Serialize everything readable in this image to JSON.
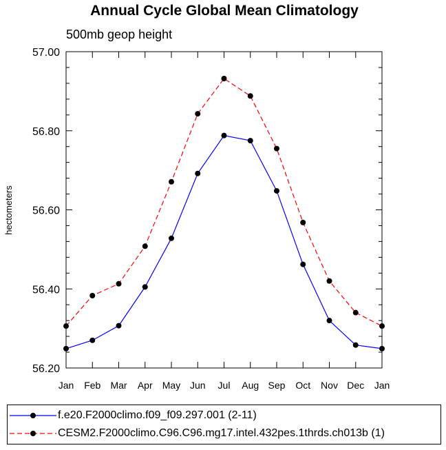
{
  "chart_data": {
    "type": "line",
    "title": "Annual Cycle Global Mean Climatology",
    "subtitle": "500mb geop height",
    "ylabel": "hectometers",
    "xlabel": "",
    "ylim": [
      56.2,
      57.0
    ],
    "ytick_values": [
      56.2,
      56.4,
      56.6,
      56.8,
      57.0
    ],
    "ytick_labels": [
      "56.20",
      "56.40",
      "56.60",
      "56.80",
      "57.00"
    ],
    "categories": [
      "Jan",
      "Feb",
      "Mar",
      "Apr",
      "May",
      "Jun",
      "Jul",
      "Aug",
      "Sep",
      "Oct",
      "Nov",
      "Dec",
      "Jan"
    ],
    "grid": false,
    "series": [
      {
        "name": "f.e20.F2000climo.f09_f09.297.001 (2-11)",
        "color": "#0000ff",
        "dash": "solid",
        "marker": "dot",
        "values": [
          56.249,
          56.27,
          56.307,
          56.405,
          56.528,
          56.692,
          56.788,
          56.775,
          56.648,
          56.462,
          56.32,
          56.258,
          56.249
        ]
      },
      {
        "name": "CESM2.F2000climo.C96.C96.mg17.intel.432pes.1thrds.ch013b (1)",
        "color": "#ff0000",
        "dash": "dashed",
        "marker": "dot",
        "values": [
          56.306,
          56.383,
          56.413,
          56.508,
          56.671,
          56.843,
          56.932,
          56.888,
          56.755,
          56.568,
          56.42,
          56.34,
          56.306
        ]
      }
    ]
  }
}
